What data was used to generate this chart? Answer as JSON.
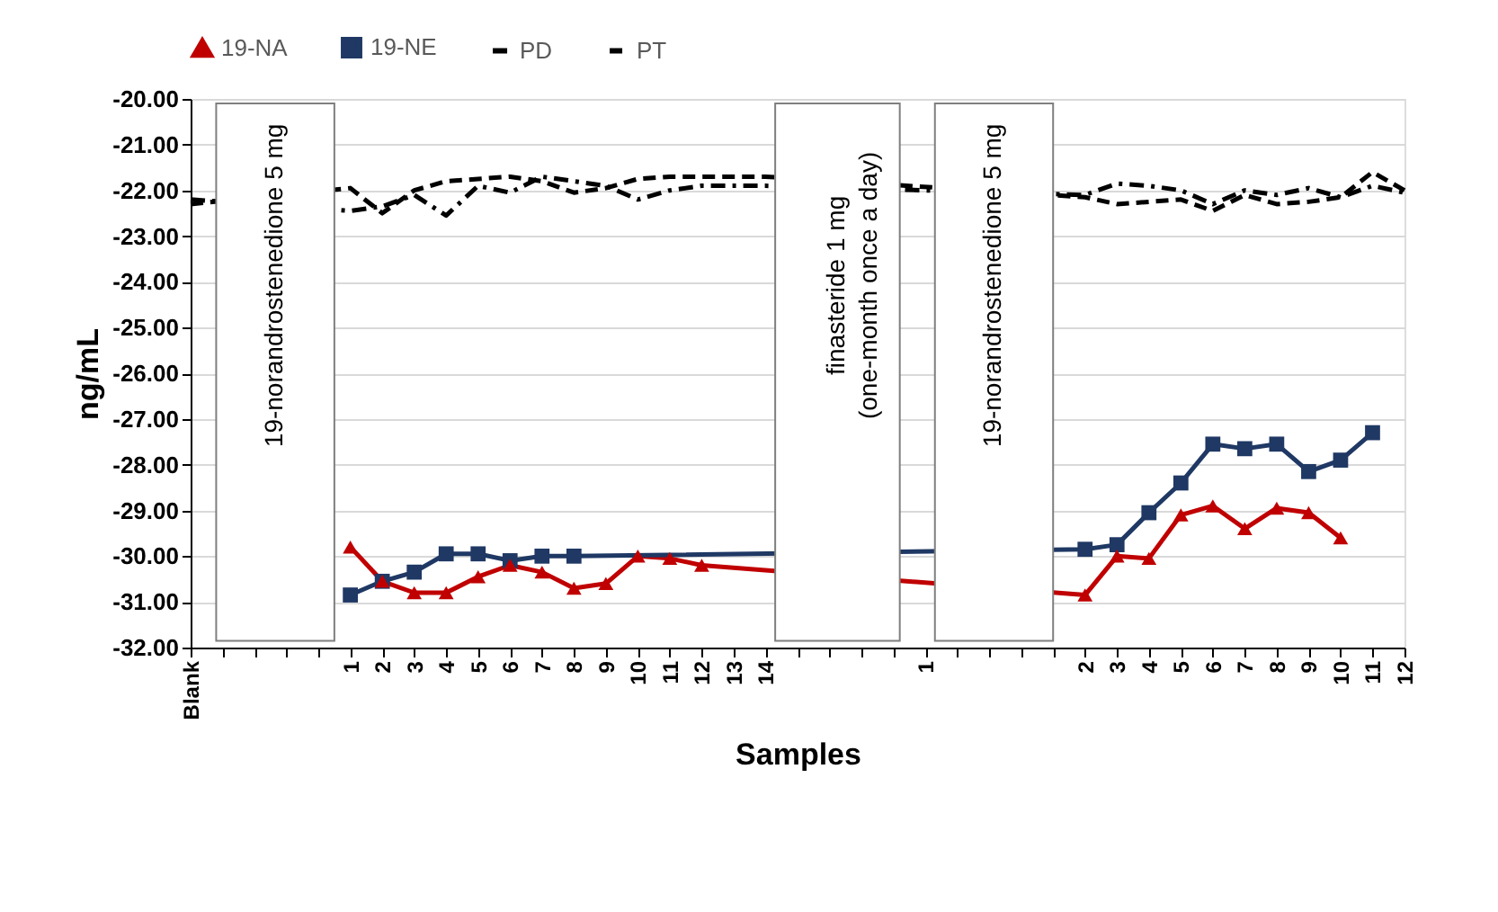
{
  "chart_data": {
    "type": "line",
    "xlabel": "Samples",
    "ylabel": "ng/mL",
    "categories": [
      "Blank",
      null,
      null,
      null,
      null,
      "1",
      "2",
      "3",
      "4",
      "5",
      "6",
      "7",
      "8",
      "9",
      "10",
      "11",
      "12",
      "13",
      "14",
      null,
      null,
      null,
      null,
      "1",
      null,
      null,
      null,
      null,
      "2",
      "3",
      "4",
      "5",
      "6",
      "7",
      "8",
      "9",
      "10",
      "11",
      "12"
    ],
    "series": [
      {
        "name": "19-NA",
        "color": "#c00000",
        "marker": "triangle",
        "line_style": "solid",
        "values": [
          null,
          null,
          null,
          null,
          null,
          -29.8,
          -30.55,
          -30.8,
          -30.8,
          -30.45,
          -30.2,
          -30.35,
          -30.7,
          -30.6,
          -30.0,
          -30.05,
          -30.2,
          null,
          null,
          null,
          null,
          null,
          null,
          null,
          null,
          null,
          null,
          null,
          -30.85,
          -30.0,
          -30.05,
          -29.1,
          -28.9,
          -29.4,
          -28.95,
          -29.05,
          -29.6,
          null,
          null
        ]
      },
      {
        "name": "19-NE",
        "color": "#1f3864",
        "marker": "square",
        "line_style": "solid",
        "values": [
          null,
          null,
          null,
          null,
          null,
          -30.85,
          -30.55,
          -30.35,
          -29.95,
          -29.95,
          -30.1,
          -30.0,
          -30.0,
          null,
          null,
          null,
          null,
          null,
          null,
          null,
          null,
          null,
          null,
          null,
          null,
          null,
          null,
          null,
          -29.85,
          -29.75,
          -29.05,
          -28.4,
          -27.55,
          -27.65,
          -27.55,
          -28.15,
          -27.9,
          -27.3,
          null
        ]
      },
      {
        "name": "PD",
        "color": "#000000",
        "marker": "none",
        "line_style": "dotted",
        "values": [
          -22.2,
          null,
          null,
          null,
          null,
          -22.45,
          -22.35,
          -22.1,
          -22.55,
          -21.9,
          -22.05,
          -21.7,
          -21.8,
          -21.9,
          -22.2,
          -22.0,
          -21.9,
          -21.9,
          -21.9,
          null,
          null,
          null,
          null,
          null,
          null,
          null,
          null,
          null,
          -22.1,
          -21.85,
          -21.9,
          -22.0,
          -22.3,
          -22.0,
          -22.1,
          -21.95,
          -22.15,
          -21.9,
          -22.05
        ]
      },
      {
        "name": "PT",
        "color": "#000000",
        "marker": "none",
        "line_style": "dashed",
        "values": [
          -22.3,
          null,
          null,
          null,
          null,
          -21.95,
          -22.5,
          -22.0,
          -21.8,
          -21.75,
          -21.7,
          -21.8,
          -22.05,
          -21.95,
          -21.75,
          -21.7,
          -21.7,
          -21.7,
          -21.7,
          null,
          null,
          null,
          null,
          null,
          null,
          null,
          null,
          null,
          -22.15,
          -22.3,
          -22.25,
          -22.2,
          -22.45,
          -22.1,
          -22.3,
          -22.25,
          -22.15,
          -21.6,
          -22.0
        ]
      }
    ],
    "ylim": [
      -32,
      -20
    ],
    "yticks": [
      {
        "value": -32,
        "label": "-32.00"
      },
      {
        "value": -31,
        "label": "-31.00"
      },
      {
        "value": -30,
        "label": "-30.00"
      },
      {
        "value": -29,
        "label": "-29.00"
      },
      {
        "value": -28,
        "label": "-28.00"
      },
      {
        "value": -27,
        "label": "-27.00"
      },
      {
        "value": -26,
        "label": "-26.00"
      },
      {
        "value": -25,
        "label": "-25.00"
      },
      {
        "value": -24,
        "label": "-24.00"
      },
      {
        "value": -23,
        "label": "-23.00"
      },
      {
        "value": -22,
        "label": "-22.00"
      },
      {
        "value": -21,
        "label": "-21.00"
      },
      {
        "value": -20,
        "label": "-20.00"
      }
    ],
    "grid": "y",
    "legend": "top",
    "annotations": [
      "19-norandrostenedione 5 mg",
      "finasteride 1 mg\n(one-month  once a day)",
      "19-norandrostenedione 5 mg"
    ]
  }
}
